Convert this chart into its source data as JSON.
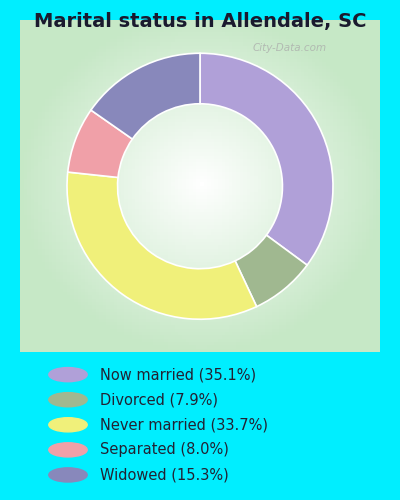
{
  "title": "Marital status in Allendale, SC",
  "title_fontsize": 14,
  "slices": [
    {
      "label": "Now married (35.1%)",
      "value": 35.1,
      "color": "#b0a0d8"
    },
    {
      "label": "Divorced (7.9%)",
      "value": 7.9,
      "color": "#a0b890"
    },
    {
      "label": "Never married (33.7%)",
      "value": 33.7,
      "color": "#f0f07a"
    },
    {
      "label": "Separated (8.0%)",
      "value": 8.0,
      "color": "#f0a0a8"
    },
    {
      "label": "Widowed (15.3%)",
      "value": 15.3,
      "color": "#8888bb"
    }
  ],
  "outer_bg": "#00eeff",
  "legend_bg": "#00eeff",
  "legend_text_color": "#222233",
  "legend_fontsize": 10.5,
  "start_angle": 90,
  "title_color": "#1a1a2e",
  "watermark": "City-Data.com"
}
